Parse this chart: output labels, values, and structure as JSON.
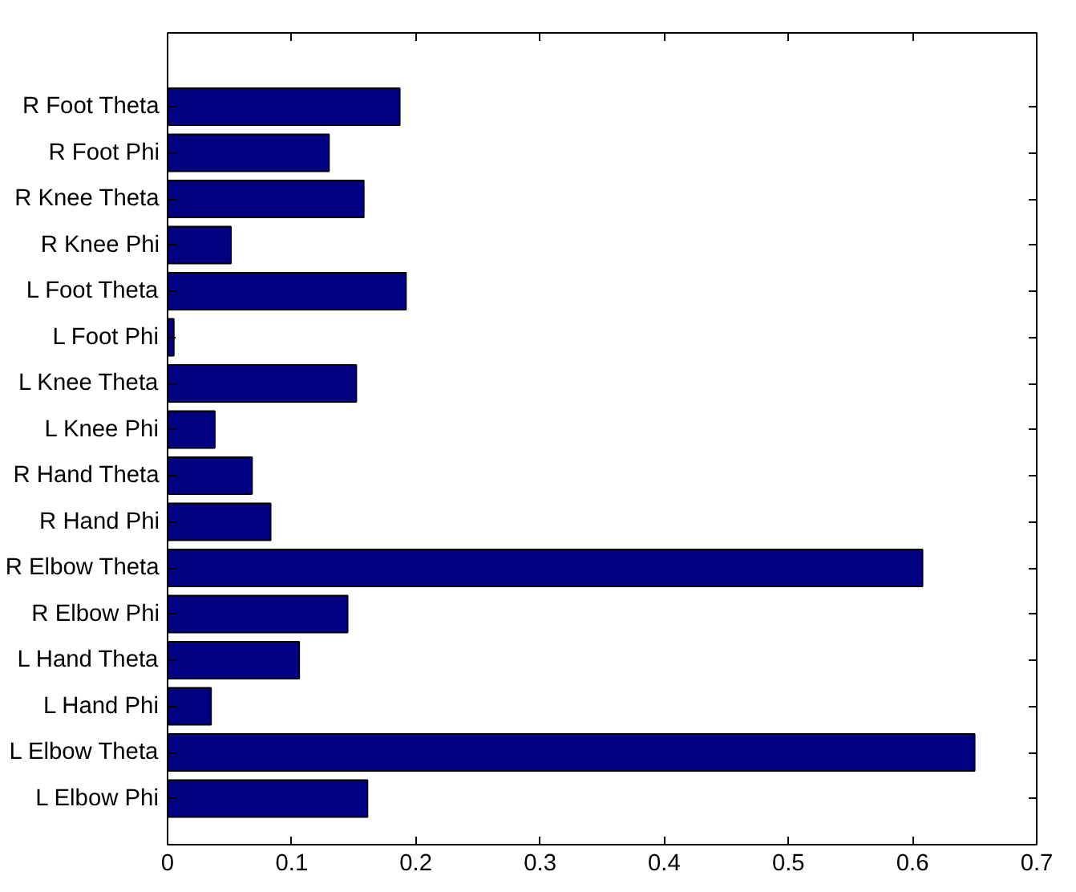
{
  "chart_data": {
    "type": "bar",
    "orientation": "horizontal",
    "categories": [
      "R Foot Theta",
      "R Foot Phi",
      "R Knee Theta",
      "R Knee Phi",
      "L Foot Theta",
      "L Foot Phi",
      "L Knee Theta",
      "L Knee Phi",
      "R Hand Theta",
      "R Hand Phi",
      "R Elbow Theta",
      "R Elbow Phi",
      "L Hand Theta",
      "L Hand Phi",
      "L Elbow Theta",
      "L Elbow Phi"
    ],
    "values": [
      0.187,
      0.13,
      0.158,
      0.051,
      0.192,
      0.005,
      0.152,
      0.038,
      0.068,
      0.083,
      0.608,
      0.145,
      0.106,
      0.035,
      0.65,
      0.161
    ],
    "color": "#000080",
    "xlim": [
      0,
      0.7
    ],
    "xticks": [
      0,
      0.1,
      0.2,
      0.3,
      0.4,
      0.5,
      0.6,
      0.7
    ],
    "grid": false
  }
}
